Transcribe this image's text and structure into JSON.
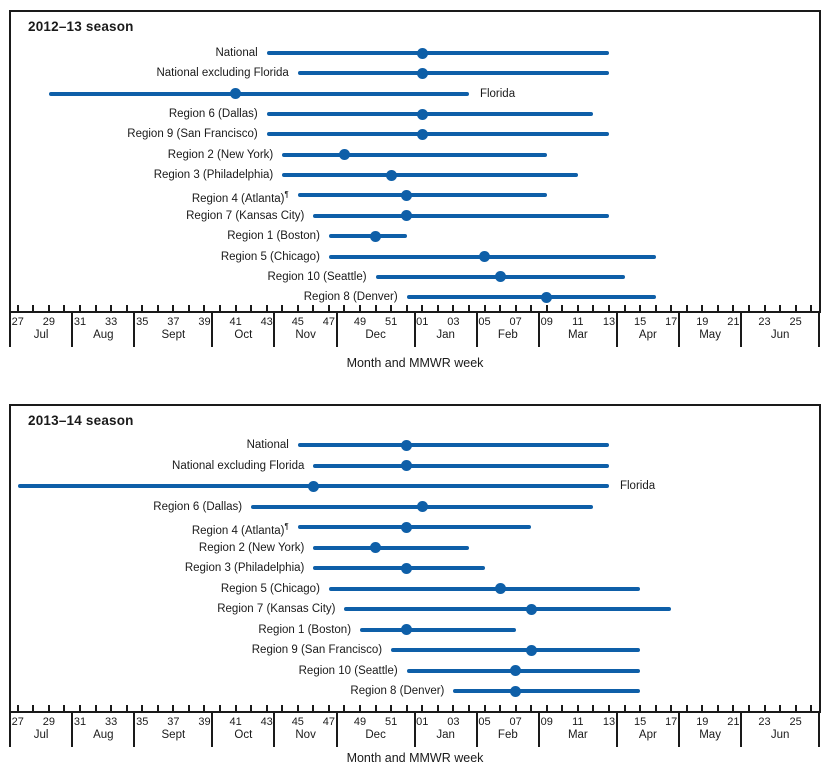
{
  "colors": {
    "series_blue": "#0e5fa8",
    "axis_black": "#1a1a1a",
    "background": "#ffffff"
  },
  "chart_data": [
    {
      "type": "scatter",
      "title": "2012–13 season",
      "xlabel": "Month and MMWR week",
      "ylabel": "",
      "legend": "none",
      "x_axis": {
        "unit": "MMWR week",
        "start_week": 27,
        "end_week": 26,
        "tick_labels": [
          "27",
          "29",
          "31",
          "33",
          "35",
          "37",
          "39",
          "41",
          "43",
          "45",
          "47",
          "49",
          "51",
          "01",
          "03",
          "05",
          "07",
          "09",
          "11",
          "13",
          "15",
          "17",
          "19",
          "21",
          "23",
          "25"
        ],
        "months": [
          {
            "label": "Jul",
            "weeks": 4
          },
          {
            "label": "Aug",
            "weeks": 4
          },
          {
            "label": "Sept",
            "weeks": 5
          },
          {
            "label": "Oct",
            "weeks": 4
          },
          {
            "label": "Nov",
            "weeks": 4
          },
          {
            "label": "Dec",
            "weeks": 5
          },
          {
            "label": "Jan",
            "weeks": 4
          },
          {
            "label": "Feb",
            "weeks": 4
          },
          {
            "label": "Mar",
            "weeks": 5
          },
          {
            "label": "Apr",
            "weeks": 4
          },
          {
            "label": "May",
            "weeks": 4
          },
          {
            "label": "Jun",
            "weeks": 5
          }
        ]
      },
      "categories": [
        "National",
        "National excluding Florida",
        "Florida",
        "Region 6 (Dallas)",
        "Region 9 (San Francisco)",
        "Region 2 (New York)",
        "Region 3 (Philadelphia)",
        "Region 4 (Atlanta)",
        "Region 7 (Kansas City)",
        "Region 1 (Boston)",
        "Region 5 (Chicago)",
        "Region 10 (Seattle)",
        "Region 8 (Denver)"
      ],
      "series": [
        {
          "name": "season onset (MMWR week, line start)",
          "values": [
            43,
            45,
            29,
            43,
            43,
            44,
            44,
            45,
            46,
            47,
            47,
            50,
            52
          ]
        },
        {
          "name": "season peak (MMWR week, dot)",
          "values": [
            1,
            1,
            41,
            1,
            1,
            48,
            51,
            52,
            52,
            50,
            5,
            6,
            9
          ]
        },
        {
          "name": "season offset (MMWR week, line end)",
          "values": [
            13,
            13,
            4,
            12,
            13,
            9,
            11,
            9,
            13,
            52,
            16,
            14,
            16
          ]
        }
      ],
      "row_label_side": [
        "left",
        "left",
        "right",
        "left",
        "left",
        "left",
        "left",
        "left",
        "left",
        "left",
        "left",
        "left",
        "left"
      ],
      "row_label_sup": [
        "",
        "",
        "",
        "",
        "",
        "",
        "",
        "¶",
        "",
        "",
        "",
        "",
        ""
      ]
    },
    {
      "type": "scatter",
      "title": "2013–14 season",
      "xlabel": "Month and MMWR week",
      "ylabel": "",
      "legend": "none",
      "x_axis": {
        "unit": "MMWR week",
        "start_week": 27,
        "end_week": 26,
        "tick_labels": [
          "27",
          "29",
          "31",
          "33",
          "35",
          "37",
          "39",
          "41",
          "43",
          "45",
          "47",
          "49",
          "51",
          "01",
          "03",
          "05",
          "07",
          "09",
          "11",
          "13",
          "15",
          "17",
          "19",
          "21",
          "23",
          "25"
        ],
        "months": [
          {
            "label": "Jul",
            "weeks": 4
          },
          {
            "label": "Aug",
            "weeks": 4
          },
          {
            "label": "Sept",
            "weeks": 5
          },
          {
            "label": "Oct",
            "weeks": 4
          },
          {
            "label": "Nov",
            "weeks": 4
          },
          {
            "label": "Dec",
            "weeks": 5
          },
          {
            "label": "Jan",
            "weeks": 4
          },
          {
            "label": "Feb",
            "weeks": 4
          },
          {
            "label": "Mar",
            "weeks": 5
          },
          {
            "label": "Apr",
            "weeks": 4
          },
          {
            "label": "May",
            "weeks": 4
          },
          {
            "label": "Jun",
            "weeks": 5
          }
        ]
      },
      "categories": [
        "National",
        "National excluding Florida",
        "Florida",
        "Region 6 (Dallas)",
        "Region 4 (Atlanta)",
        "Region 2 (New York)",
        "Region 3 (Philadelphia)",
        "Region 5 (Chicago)",
        "Region 7 (Kansas City)",
        "Region 1 (Boston)",
        "Region 9 (San Francisco)",
        "Region 10 (Seattle)",
        "Region 8 (Denver)"
      ],
      "series": [
        {
          "name": "season onset (MMWR week, line start)",
          "values": [
            45,
            46,
            27,
            42,
            45,
            46,
            46,
            47,
            48,
            49,
            51,
            52,
            3
          ]
        },
        {
          "name": "season peak (MMWR week, dot)",
          "values": [
            52,
            52,
            46,
            1,
            52,
            50,
            52,
            6,
            8,
            52,
            8,
            7,
            7
          ]
        },
        {
          "name": "season offset (MMWR week, line end)",
          "values": [
            13,
            13,
            13,
            12,
            8,
            4,
            5,
            15,
            17,
            7,
            15,
            15,
            15
          ]
        }
      ],
      "row_label_side": [
        "left",
        "left",
        "right",
        "left",
        "left",
        "left",
        "left",
        "left",
        "left",
        "left",
        "left",
        "left",
        "left"
      ],
      "row_label_sup": [
        "",
        "",
        "",
        "",
        "¶",
        "",
        "",
        "",
        "",
        "",
        "",
        "",
        ""
      ]
    }
  ]
}
